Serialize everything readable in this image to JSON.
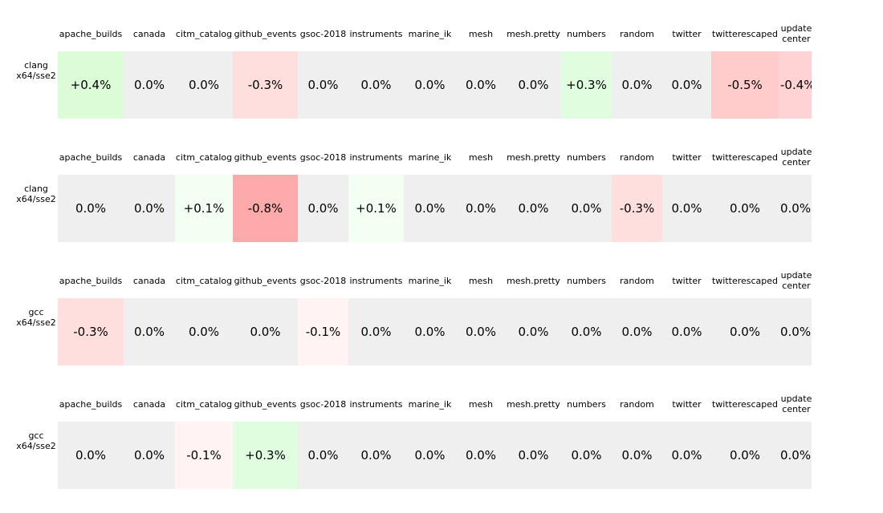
{
  "columns": [
    "apache_builds",
    "canada",
    "citm_catalog",
    "github_events",
    "gsoc-2018",
    "instruments",
    "marine_ik",
    "mesh",
    "mesh.pretty",
    "numbers",
    "random",
    "twitter",
    "twitterescaped",
    "update center"
  ],
  "panels": [
    {
      "label": "clang x64/sse2",
      "cells": [
        "+0.4%",
        "0.0%",
        "0.0%",
        "-0.3%",
        "0.0%",
        "0.0%",
        "0.0%",
        "0.0%",
        "0.0%",
        "+0.3%",
        "0.0%",
        "0.0%",
        "-0.5%",
        "-0.4%"
      ],
      "colors": [
        "#dbfcd7",
        "#efefef",
        "#efefef",
        "#ffdede",
        "#efefef",
        "#efefef",
        "#efefef",
        "#efefef",
        "#efefef",
        "#e0fde0",
        "#efefef",
        "#efefef",
        "#ffcbcb",
        "#ffd3d3"
      ]
    },
    {
      "label": "clang x64/sse2",
      "cells": [
        "0.0%",
        "0.0%",
        "+0.1%",
        "-0.8%",
        "0.0%",
        "+0.1%",
        "0.0%",
        "0.0%",
        "0.0%",
        "0.0%",
        "-0.3%",
        "0.0%",
        "0.0%",
        "0.0%"
      ],
      "colors": [
        "#efefef",
        "#efefef",
        "#f4fff3",
        "#ffaaaa",
        "#efefef",
        "#f4fff3",
        "#efefef",
        "#efefef",
        "#efefef",
        "#efefef",
        "#ffdede",
        "#efefef",
        "#efefef",
        "#efefef"
      ]
    },
    {
      "label": "gcc x64/sse2",
      "cells": [
        "-0.3%",
        "0.0%",
        "0.0%",
        "0.0%",
        "-0.1%",
        "0.0%",
        "0.0%",
        "0.0%",
        "0.0%",
        "0.0%",
        "0.0%",
        "0.0%",
        "0.0%",
        "0.0%"
      ],
      "colors": [
        "#ffdede",
        "#efefef",
        "#efefef",
        "#efefef",
        "#fff3f3",
        "#efefef",
        "#efefef",
        "#efefef",
        "#efefef",
        "#efefef",
        "#efefef",
        "#efefef",
        "#efefef",
        "#efefef"
      ]
    },
    {
      "label": "gcc x64/sse2",
      "cells": [
        "0.0%",
        "0.0%",
        "-0.1%",
        "+0.3%",
        "0.0%",
        "0.0%",
        "0.0%",
        "0.0%",
        "0.0%",
        "0.0%",
        "0.0%",
        "0.0%",
        "0.0%",
        "0.0%"
      ],
      "colors": [
        "#efefef",
        "#efefef",
        "#fff3f3",
        "#e0fde0",
        "#efefef",
        "#efefef",
        "#efefef",
        "#efefef",
        "#efefef",
        "#efefef",
        "#efefef",
        "#efefef",
        "#efefef",
        "#efefef"
      ]
    }
  ]
}
